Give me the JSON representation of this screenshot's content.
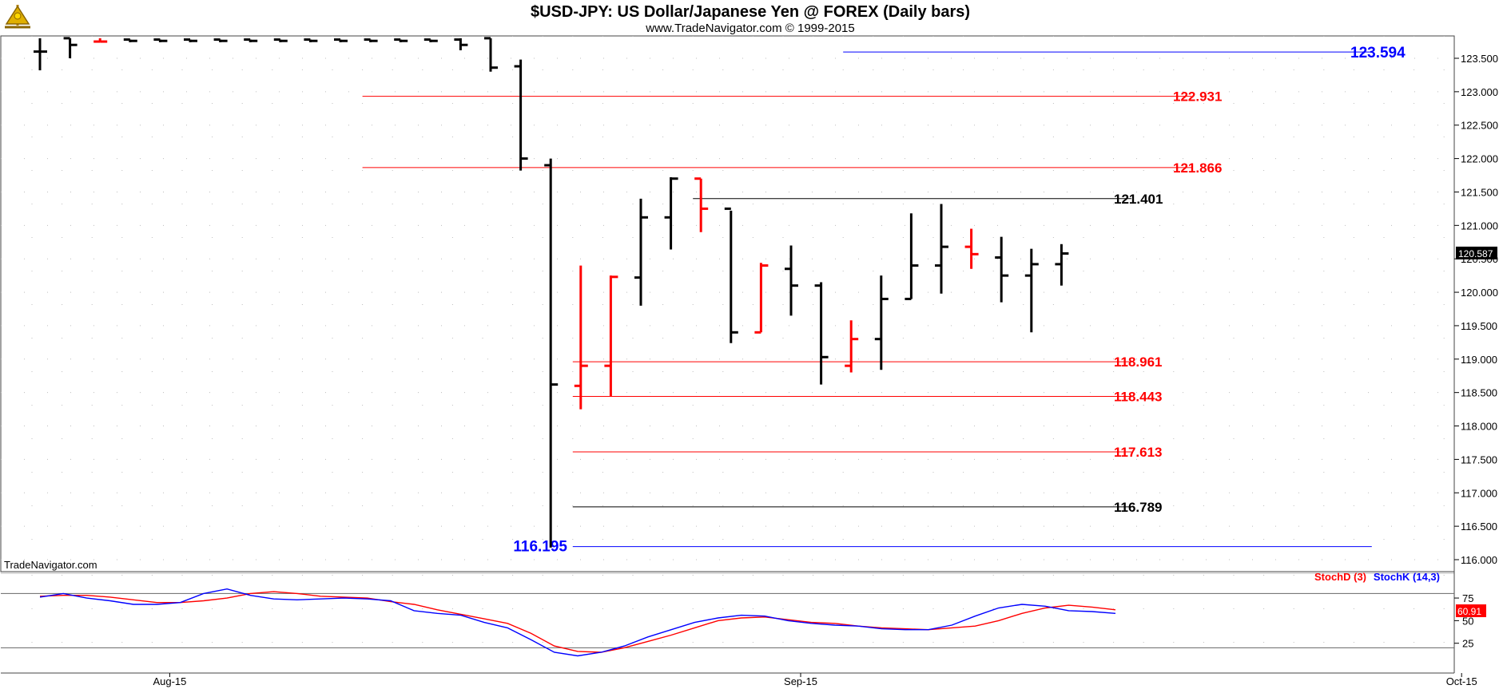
{
  "header": {
    "title": "$USD-JPY:  US Dollar/Japanese Yen @ FOREX  (Daily bars)",
    "subtitle": "www.TradeNavigator.com © 1999-2015",
    "watermark": "TradeNavigator.com",
    "logo_icon": "sextant-logo-icon"
  },
  "colors": {
    "up": "#000000",
    "down": "#ff0000",
    "blue": "#0000ff",
    "grid": "#9a9a9a",
    "last_bg": "#000000",
    "stoch_last_bg": "#ff0000"
  },
  "chart_data": [
    {
      "type": "ohlc",
      "title": "$USD-JPY:  US Dollar/Japanese Yen @ FOREX  (Daily bars)",
      "ylim": [
        116.0,
        123.75
      ],
      "yticks": [
        "116.000",
        "116.500",
        "117.000",
        "117.500",
        "118.000",
        "118.500",
        "119.000",
        "119.500",
        "120.000",
        "120.500",
        "121.000",
        "121.500",
        "122.000",
        "122.500",
        "123.000",
        "123.500"
      ],
      "xticks": [
        {
          "label": "Aug-15",
          "index": 4
        },
        {
          "label": "Sep-15",
          "index": 25
        },
        {
          "label": "Oct-15",
          "index": 47
        }
      ],
      "bars": [
        {
          "o": 123.6,
          "h": 123.8,
          "l": 123.32,
          "c": 123.6,
          "dir": "up"
        },
        {
          "o": 123.8,
          "h": 123.8,
          "l": 123.5,
          "c": 123.7,
          "dir": "up"
        },
        {
          "o": 123.75,
          "h": 123.8,
          "l": 123.75,
          "c": 123.75,
          "dir": "down"
        },
        {
          "o": 123.78,
          "h": 123.78,
          "l": 123.74,
          "c": 123.76,
          "dir": "up"
        },
        {
          "o": 123.78,
          "h": 123.78,
          "l": 123.74,
          "c": 123.76,
          "dir": "up"
        },
        {
          "o": 123.78,
          "h": 123.78,
          "l": 123.74,
          "c": 123.76,
          "dir": "up"
        },
        {
          "o": 123.78,
          "h": 123.78,
          "l": 123.74,
          "c": 123.76,
          "dir": "up"
        },
        {
          "o": 123.78,
          "h": 123.78,
          "l": 123.74,
          "c": 123.76,
          "dir": "up"
        },
        {
          "o": 123.78,
          "h": 123.78,
          "l": 123.74,
          "c": 123.76,
          "dir": "up"
        },
        {
          "o": 123.78,
          "h": 123.78,
          "l": 123.74,
          "c": 123.76,
          "dir": "up"
        },
        {
          "o": 123.78,
          "h": 123.78,
          "l": 123.74,
          "c": 123.76,
          "dir": "up"
        },
        {
          "o": 123.78,
          "h": 123.78,
          "l": 123.74,
          "c": 123.76,
          "dir": "up"
        },
        {
          "o": 123.78,
          "h": 123.78,
          "l": 123.74,
          "c": 123.76,
          "dir": "up"
        },
        {
          "o": 123.78,
          "h": 123.78,
          "l": 123.74,
          "c": 123.76,
          "dir": "up"
        },
        {
          "o": 123.78,
          "h": 123.8,
          "l": 123.62,
          "c": 123.7,
          "dir": "up"
        },
        {
          "o": 123.8,
          "h": 123.8,
          "l": 123.3,
          "c": 123.36,
          "dir": "up"
        },
        {
          "o": 123.38,
          "h": 123.48,
          "l": 121.82,
          "c": 122.0,
          "dir": "up"
        },
        {
          "o": 121.9,
          "h": 122.0,
          "l": 116.18,
          "c": 118.62,
          "dir": "up"
        },
        {
          "o": 118.6,
          "h": 120.4,
          "l": 118.25,
          "c": 118.9,
          "dir": "down"
        },
        {
          "o": 118.9,
          "h": 120.25,
          "l": 118.44,
          "c": 120.23,
          "dir": "down"
        },
        {
          "o": 120.22,
          "h": 121.4,
          "l": 119.8,
          "c": 121.12,
          "dir": "up"
        },
        {
          "o": 121.12,
          "h": 121.72,
          "l": 120.64,
          "c": 121.7,
          "dir": "up"
        },
        {
          "o": 121.7,
          "h": 121.7,
          "l": 120.9,
          "c": 121.25,
          "dir": "down"
        },
        {
          "o": 121.25,
          "h": 121.22,
          "l": 119.24,
          "c": 119.4,
          "dir": "up"
        },
        {
          "o": 119.4,
          "h": 120.44,
          "l": 119.4,
          "c": 120.4,
          "dir": "down"
        },
        {
          "o": 120.35,
          "h": 120.7,
          "l": 119.65,
          "c": 120.1,
          "dir": "up"
        },
        {
          "o": 120.1,
          "h": 120.15,
          "l": 118.62,
          "c": 119.03,
          "dir": "up"
        },
        {
          "o": 118.9,
          "h": 119.58,
          "l": 118.8,
          "c": 119.3,
          "dir": "down"
        },
        {
          "o": 119.3,
          "h": 120.25,
          "l": 118.84,
          "c": 119.9,
          "dir": "up"
        },
        {
          "o": 119.9,
          "h": 121.18,
          "l": 119.9,
          "c": 120.4,
          "dir": "up"
        },
        {
          "o": 120.4,
          "h": 121.32,
          "l": 119.98,
          "c": 120.68,
          "dir": "up"
        },
        {
          "o": 120.68,
          "h": 120.95,
          "l": 120.35,
          "c": 120.57,
          "dir": "down"
        },
        {
          "o": 120.52,
          "h": 120.83,
          "l": 119.85,
          "c": 120.25,
          "dir": "up"
        },
        {
          "o": 120.25,
          "h": 120.65,
          "l": 119.4,
          "c": 120.42,
          "dir": "up"
        },
        {
          "o": 120.42,
          "h": 120.72,
          "l": 120.1,
          "c": 120.58,
          "dir": "up"
        }
      ],
      "levels": [
        {
          "value": 123.594,
          "label": "123.594",
          "color": "blue",
          "from_index": 27,
          "to_index": 43,
          "style": "big"
        },
        {
          "value": 122.931,
          "label": "122.931",
          "color": "red",
          "from_index": 11,
          "to_index": 37,
          "style": "normal"
        },
        {
          "value": 121.866,
          "label": "121.866",
          "color": "red",
          "from_index": 11,
          "to_index": 37,
          "style": "normal"
        },
        {
          "value": 121.401,
          "label": "121.401",
          "color": "black",
          "from_index": 22,
          "to_index": 35,
          "style": "normal"
        },
        {
          "value": 118.961,
          "label": "118.961",
          "color": "red",
          "from_index": 18,
          "to_index": 35,
          "style": "normal"
        },
        {
          "value": 118.443,
          "label": "118.443",
          "color": "red",
          "from_index": 18,
          "to_index": 35,
          "style": "normal"
        },
        {
          "value": 117.613,
          "label": "117.613",
          "color": "red",
          "from_index": 18,
          "to_index": 35,
          "style": "normal"
        },
        {
          "value": 116.789,
          "label": "116.789",
          "color": "black",
          "from_index": 18,
          "to_index": 35,
          "style": "normal"
        },
        {
          "value": 116.195,
          "label": "116.195",
          "color": "blue",
          "from_index": 18,
          "to_index": 43,
          "style": "big-left"
        }
      ],
      "last_price": {
        "value": 120.587,
        "label": "120.587"
      }
    },
    {
      "type": "line",
      "yticks": [
        {
          "value": 25,
          "label": "25"
        },
        {
          "value": 50,
          "label": "50"
        },
        {
          "value": 75,
          "label": "75"
        }
      ],
      "ylim": [
        0,
        100
      ],
      "overbought": 80,
      "oversold": 20,
      "series": [
        {
          "name": "StochD (3)",
          "color": "red",
          "values": [
            77,
            78,
            78,
            76,
            73,
            70,
            70,
            72,
            75,
            80,
            82,
            80,
            77,
            76,
            75,
            71,
            68,
            62,
            57,
            52,
            47,
            36,
            22,
            16,
            15,
            20,
            27,
            34,
            42,
            50,
            53,
            54,
            51,
            48,
            47,
            44,
            42,
            41,
            40,
            42,
            44,
            50,
            58,
            64,
            67,
            65,
            62
          ]
        },
        {
          "name": "StochK (14,3)",
          "color": "blue",
          "values": [
            76,
            80,
            75,
            72,
            68,
            68,
            70,
            80,
            85,
            78,
            74,
            73,
            74,
            75,
            74,
            72,
            61,
            58,
            56,
            48,
            42,
            29,
            15,
            11,
            15,
            22,
            32,
            40,
            48,
            53,
            56,
            55,
            50,
            47,
            45,
            44,
            41,
            40,
            40,
            45,
            55,
            64,
            68,
            66,
            61,
            60,
            58
          ]
        }
      ],
      "last_value": {
        "value": 60.91,
        "label": "60.91"
      }
    }
  ]
}
